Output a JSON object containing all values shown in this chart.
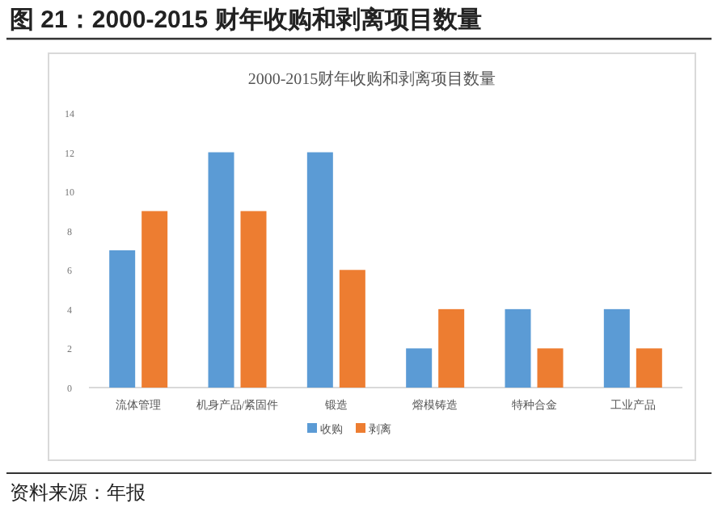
{
  "chart_data": {
    "type": "bar",
    "title": "图 21：2000-2015 财年收购和剥离项目数量",
    "subtitle": "2000-2015财年收购和剥离项目数量",
    "categories": [
      "流体管理",
      "机身产品/紧固件",
      "锻造",
      "熔模铸造",
      "特种合金",
      "工业产品"
    ],
    "series": [
      {
        "name": "收购",
        "color": "#5b9bd5",
        "values": [
          7,
          12,
          12,
          2,
          4,
          4
        ]
      },
      {
        "name": "剥离",
        "color": "#ed7d31",
        "values": [
          9,
          9,
          6,
          4,
          2,
          2
        ]
      }
    ],
    "ylim": [
      0,
      14
    ],
    "yticks": [
      0,
      2,
      4,
      6,
      8,
      10,
      12,
      14
    ],
    "grid": false,
    "legend": "bottom",
    "annotations": [
      "资料来源：年报"
    ]
  }
}
